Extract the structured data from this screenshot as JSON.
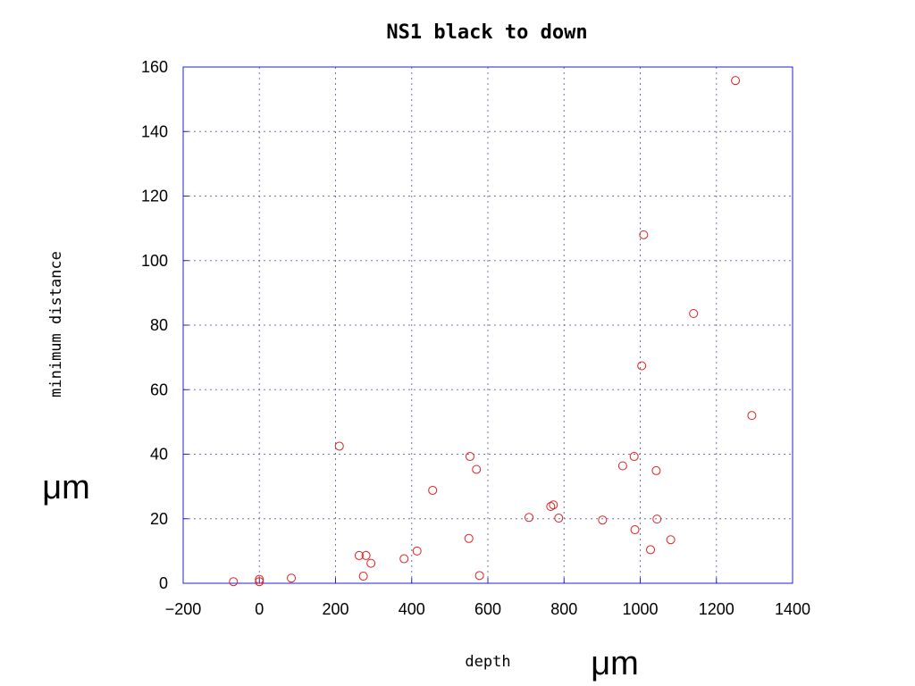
{
  "chart_data": {
    "type": "scatter",
    "title": "NS1 black to  down",
    "xlabel": "depth",
    "ylabel": "minimum distance",
    "x_unit": "μm",
    "y_unit": "μm",
    "xlim": [
      -200,
      1400
    ],
    "ylim": [
      0,
      160
    ],
    "xticks": [
      -200,
      0,
      200,
      400,
      600,
      800,
      1000,
      1200,
      1400
    ],
    "yticks": [
      0,
      20,
      40,
      60,
      80,
      100,
      120,
      140,
      160
    ],
    "grid": true,
    "legend": "none",
    "marker": "open-circle",
    "colors": {
      "points": "#e02020",
      "frame": "#2020d0",
      "grid": "#7070b0"
    },
    "points": [
      {
        "x": -68,
        "y": 0.5
      },
      {
        "x": 0,
        "y": 1.2
      },
      {
        "x": 0,
        "y": 0.5
      },
      {
        "x": 84,
        "y": 1.6
      },
      {
        "x": 210,
        "y": 42.5
      },
      {
        "x": 262,
        "y": 8.6
      },
      {
        "x": 273,
        "y": 2.2
      },
      {
        "x": 280,
        "y": 8.6
      },
      {
        "x": 293,
        "y": 6.2
      },
      {
        "x": 380,
        "y": 7.6
      },
      {
        "x": 414,
        "y": 10.0
      },
      {
        "x": 455,
        "y": 28.8
      },
      {
        "x": 550,
        "y": 13.9
      },
      {
        "x": 553,
        "y": 39.3
      },
      {
        "x": 570,
        "y": 35.3
      },
      {
        "x": 578,
        "y": 2.4
      },
      {
        "x": 708,
        "y": 20.4
      },
      {
        "x": 765,
        "y": 23.8
      },
      {
        "x": 772,
        "y": 24.3
      },
      {
        "x": 786,
        "y": 20.2
      },
      {
        "x": 901,
        "y": 19.6
      },
      {
        "x": 954,
        "y": 36.4
      },
      {
        "x": 984,
        "y": 39.3
      },
      {
        "x": 986,
        "y": 16.6
      },
      {
        "x": 1004,
        "y": 67.4
      },
      {
        "x": 1009,
        "y": 108.0
      },
      {
        "x": 1027,
        "y": 10.4
      },
      {
        "x": 1042,
        "y": 34.9
      },
      {
        "x": 1044,
        "y": 19.9
      },
      {
        "x": 1080,
        "y": 13.5
      },
      {
        "x": 1140,
        "y": 83.6
      },
      {
        "x": 1250,
        "y": 155.8
      },
      {
        "x": 1293,
        "y": 52.0
      }
    ]
  }
}
